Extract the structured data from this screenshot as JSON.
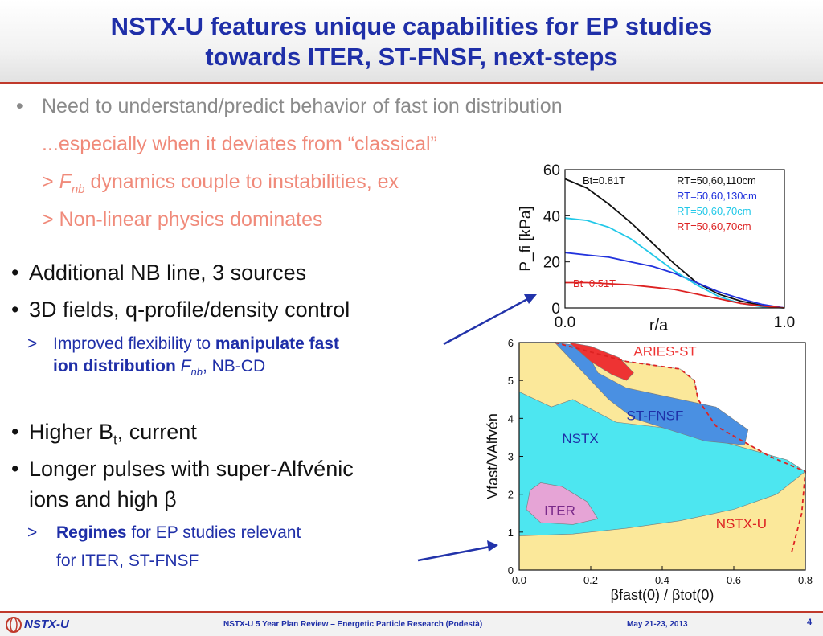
{
  "title": {
    "line1": "NSTX-U features unique capabilities for EP studies",
    "line2": "towards ITER, ST-FNSF, next-steps"
  },
  "bullets": {
    "b1": "Need to understand/predict behavior of fast ion distribution",
    "b1_sub1": "...especially when it deviates from “classical”",
    "b1_sub2_prefix": ">",
    "b1_sub2_var": "F",
    "b1_sub2_var_sub": "nb",
    "b1_sub2_text": "dynamics couple to instabilities, ex",
    "b1_sub3": "> Non-linear physics dominates",
    "b2": "Additional NB line, 3 sources",
    "b3": "3D fields, q-profile/density control",
    "b3_sub_prefix": ">",
    "b3_sub_a": "Improved flexibility to ",
    "b3_sub_b": "manipulate fast",
    "b3_sub_c": "ion distribution",
    "b3_sub_var": "F",
    "b3_sub_var_sub": "nb",
    "b3_sub_d": ", NB-CD",
    "b4_a": "Higher B",
    "b4_sub": "t",
    "b4_b": ", current",
    "b5_line1": "Longer pulses with super-Alfvénic",
    "b5_line2": "ions and high β",
    "b5_sub_prefix": ">",
    "b5_sub_bold": "Regimes",
    "b5_sub_rest": " for EP studies relevant",
    "b5_sub_line2": "for ITER, ST-FNSF",
    "bullet_char": "•"
  },
  "footer": {
    "logo_text": "NSTX-U",
    "center": "NSTX-U 5 Year Plan Review – Energetic Particle Research (Podestà)",
    "date": "May 21-23, 2013",
    "page": "4"
  },
  "colors": {
    "title": "#1f2fa8",
    "accent_red": "#c0392b",
    "grey_text": "#8a8a8a",
    "salmon_text": "#f08a7a"
  },
  "chart_data": [
    {
      "type": "line",
      "xlabel": "r/a",
      "ylabel": "P_fi [kPa]",
      "xlim": [
        0,
        1
      ],
      "ylim": [
        0,
        60
      ],
      "xticks": [
        "0.0",
        "1.0"
      ],
      "yticks": [
        "0",
        "20",
        "40",
        "60"
      ],
      "annotations": [
        "Bt=0.81T",
        "Bt=0.51T"
      ],
      "series": [
        {
          "name": "RT=50,60,110cm",
          "color": "#111111",
          "x": [
            0,
            0.1,
            0.2,
            0.3,
            0.4,
            0.5,
            0.6,
            0.7,
            0.8,
            0.9,
            1.0
          ],
          "y": [
            56,
            52,
            45,
            37,
            28,
            19,
            11,
            6,
            3,
            1,
            0
          ]
        },
        {
          "name": "RT=50,60,130cm",
          "color": "#2233dd",
          "x": [
            0,
            0.1,
            0.2,
            0.3,
            0.4,
            0.5,
            0.6,
            0.7,
            0.8,
            0.9,
            1.0
          ],
          "y": [
            24,
            23,
            22,
            20,
            18,
            15,
            11,
            7,
            4,
            1.5,
            0
          ]
        },
        {
          "name": "RT=50,60,70cm",
          "color": "#22c8e8",
          "x": [
            0,
            0.1,
            0.2,
            0.3,
            0.4,
            0.5,
            0.6,
            0.7,
            0.8,
            0.9,
            1.0
          ],
          "y": [
            39,
            38,
            35,
            30,
            23,
            16,
            10,
            5,
            2,
            0.5,
            0
          ]
        },
        {
          "name": "RT=50,60,70cm",
          "color": "#dd2222",
          "x": [
            0,
            0.1,
            0.2,
            0.3,
            0.4,
            0.5,
            0.6,
            0.7,
            0.8,
            0.9,
            1.0
          ],
          "y": [
            11,
            11,
            10.5,
            10,
            9,
            8,
            6,
            4,
            2,
            0.8,
            0
          ]
        }
      ]
    },
    {
      "type": "area",
      "xlabel": "βfast(0) / βtot(0)",
      "ylabel": "Vfast/VAlfvén",
      "xlim": [
        0,
        0.8
      ],
      "ylim": [
        0,
        6
      ],
      "xticks": [
        "0.0",
        "0.2",
        "0.4",
        "0.6",
        "0.8"
      ],
      "yticks": [
        "0",
        "1",
        "2",
        "3",
        "4",
        "5",
        "6"
      ],
      "regions": [
        {
          "name": "NSTX-U",
          "color": "#fbe89a"
        },
        {
          "name": "NSTX",
          "color": "#4de6f0"
        },
        {
          "name": "ST-FNSF",
          "color": "#4a90e2"
        },
        {
          "name": "ITER",
          "color": "#e6a4d6"
        },
        {
          "name": "ARIES-ST",
          "color": "#ee3333"
        }
      ]
    }
  ]
}
